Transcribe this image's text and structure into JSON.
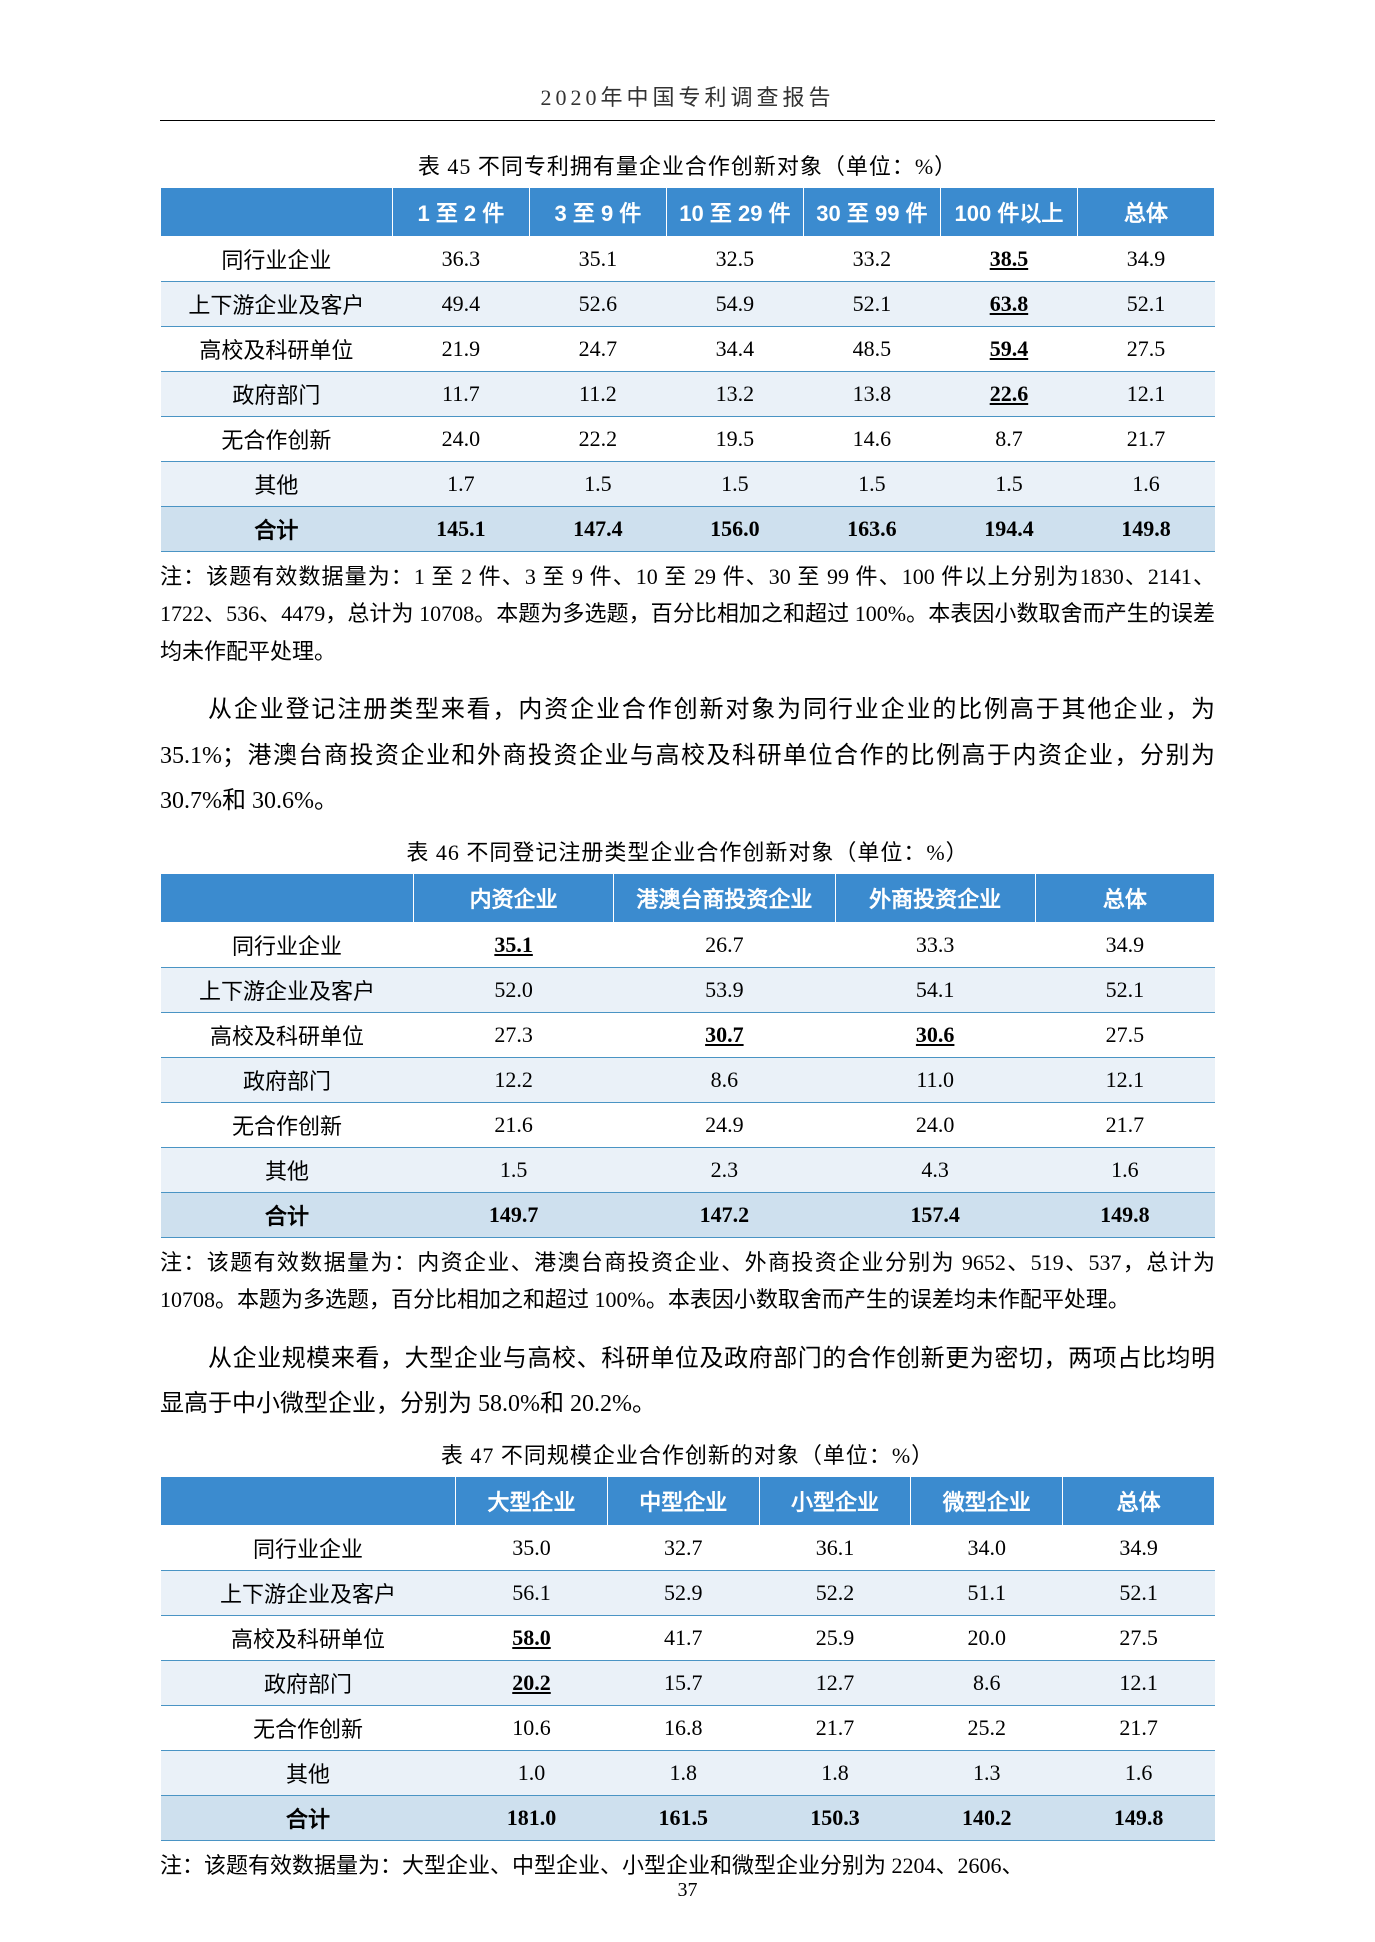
{
  "header": {
    "title": "2020年中国专利调查报告"
  },
  "page_number": "37",
  "table45": {
    "caption": "表 45 不同专利拥有量企业合作创新对象（单位：%）",
    "colors": {
      "header_bg": "#3b8bcf",
      "header_fg": "#ffffff",
      "row_alt_bg": "#eaf1f8",
      "total_bg": "#cee0ee",
      "border": "#4a94c4"
    },
    "col_widths": [
      "22%",
      "13%",
      "13%",
      "13%",
      "13%",
      "13%",
      "13%"
    ],
    "columns": [
      "",
      "1 至 2 件",
      "3 至 9 件",
      "10 至 29 件",
      "30 至 99 件",
      "100 件以上",
      "总体"
    ],
    "rows": [
      {
        "label": "同行业企业",
        "vals": [
          "36.3",
          "35.1",
          "32.5",
          "33.2",
          "38.5",
          "34.9"
        ],
        "u": [
          4
        ]
      },
      {
        "label": "上下游企业及客户",
        "vals": [
          "49.4",
          "52.6",
          "54.9",
          "52.1",
          "63.8",
          "52.1"
        ],
        "u": [
          4
        ]
      },
      {
        "label": "高校及科研单位",
        "vals": [
          "21.9",
          "24.7",
          "34.4",
          "48.5",
          "59.4",
          "27.5"
        ],
        "u": [
          4
        ]
      },
      {
        "label": "政府部门",
        "vals": [
          "11.7",
          "11.2",
          "13.2",
          "13.8",
          "22.6",
          "12.1"
        ],
        "u": [
          4
        ]
      },
      {
        "label": "无合作创新",
        "vals": [
          "24.0",
          "22.2",
          "19.5",
          "14.6",
          "8.7",
          "21.7"
        ],
        "u": []
      },
      {
        "label": "其他",
        "vals": [
          "1.7",
          "1.5",
          "1.5",
          "1.5",
          "1.5",
          "1.6"
        ],
        "u": []
      }
    ],
    "total": {
      "label": "合计",
      "vals": [
        "145.1",
        "147.4",
        "156.0",
        "163.6",
        "194.4",
        "149.8"
      ]
    },
    "note": "注：该题有效数据量为：1 至 2 件、3 至 9 件、10 至 29 件、30 至 99 件、100 件以上分别为1830、2141、1722、536、4479，总计为 10708。本题为多选题，百分比相加之和超过 100%。本表因小数取舍而产生的误差均未作配平处理。"
  },
  "para1": "从企业登记注册类型来看，内资企业合作创新对象为同行业企业的比例高于其他企业，为 35.1%；港澳台商投资企业和外商投资企业与高校及科研单位合作的比例高于内资企业，分别为 30.7%和 30.6%。",
  "table46": {
    "caption": "表 46 不同登记注册类型企业合作创新对象（单位：%）",
    "colors": {
      "header_bg": "#3b8bcf",
      "header_fg": "#ffffff",
      "row_alt_bg": "#eaf1f8",
      "total_bg": "#cee0ee",
      "border": "#4a94c4"
    },
    "col_widths": [
      "24%",
      "19%",
      "21%",
      "19%",
      "17%"
    ],
    "columns": [
      "",
      "内资企业",
      "港澳台商投资企业",
      "外商投资企业",
      "总体"
    ],
    "rows": [
      {
        "label": "同行业企业",
        "vals": [
          "35.1",
          "26.7",
          "33.3",
          "34.9"
        ],
        "u": [
          0
        ]
      },
      {
        "label": "上下游企业及客户",
        "vals": [
          "52.0",
          "53.9",
          "54.1",
          "52.1"
        ],
        "u": []
      },
      {
        "label": "高校及科研单位",
        "vals": [
          "27.3",
          "30.7",
          "30.6",
          "27.5"
        ],
        "u": [
          1,
          2
        ]
      },
      {
        "label": "政府部门",
        "vals": [
          "12.2",
          "8.6",
          "11.0",
          "12.1"
        ],
        "u": []
      },
      {
        "label": "无合作创新",
        "vals": [
          "21.6",
          "24.9",
          "24.0",
          "21.7"
        ],
        "u": []
      },
      {
        "label": "其他",
        "vals": [
          "1.5",
          "2.3",
          "4.3",
          "1.6"
        ],
        "u": []
      }
    ],
    "total": {
      "label": "合计",
      "vals": [
        "149.7",
        "147.2",
        "157.4",
        "149.8"
      ]
    },
    "note": "注：该题有效数据量为：内资企业、港澳台商投资企业、外商投资企业分别为 9652、519、537，总计为 10708。本题为多选题，百分比相加之和超过 100%。本表因小数取舍而产生的误差均未作配平处理。"
  },
  "para2": "从企业规模来看，大型企业与高校、科研单位及政府部门的合作创新更为密切，两项占比均明显高于中小微型企业，分别为 58.0%和 20.2%。",
  "table47": {
    "caption": "表 47 不同规模企业合作创新的对象（单位：%）",
    "colors": {
      "header_bg": "#3b8bcf",
      "header_fg": "#ffffff",
      "row_alt_bg": "#eaf1f8",
      "total_bg": "#cee0ee",
      "border": "#4a94c4"
    },
    "col_widths": [
      "28%",
      "14.4%",
      "14.4%",
      "14.4%",
      "14.4%",
      "14.4%"
    ],
    "columns": [
      "",
      "大型企业",
      "中型企业",
      "小型企业",
      "微型企业",
      "总体"
    ],
    "rows": [
      {
        "label": "同行业企业",
        "vals": [
          "35.0",
          "32.7",
          "36.1",
          "34.0",
          "34.9"
        ],
        "u": []
      },
      {
        "label": "上下游企业及客户",
        "vals": [
          "56.1",
          "52.9",
          "52.2",
          "51.1",
          "52.1"
        ],
        "u": []
      },
      {
        "label": "高校及科研单位",
        "vals": [
          "58.0",
          "41.7",
          "25.9",
          "20.0",
          "27.5"
        ],
        "u": [
          0
        ]
      },
      {
        "label": "政府部门",
        "vals": [
          "20.2",
          "15.7",
          "12.7",
          "8.6",
          "12.1"
        ],
        "u": [
          0
        ]
      },
      {
        "label": "无合作创新",
        "vals": [
          "10.6",
          "16.8",
          "21.7",
          "25.2",
          "21.7"
        ],
        "u": []
      },
      {
        "label": "其他",
        "vals": [
          "1.0",
          "1.8",
          "1.8",
          "1.3",
          "1.6"
        ],
        "u": []
      }
    ],
    "total": {
      "label": "合计",
      "vals": [
        "181.0",
        "161.5",
        "150.3",
        "140.2",
        "149.8"
      ]
    },
    "note": "注：该题有效数据量为：大型企业、中型企业、小型企业和微型企业分别为 2204、2606、"
  }
}
